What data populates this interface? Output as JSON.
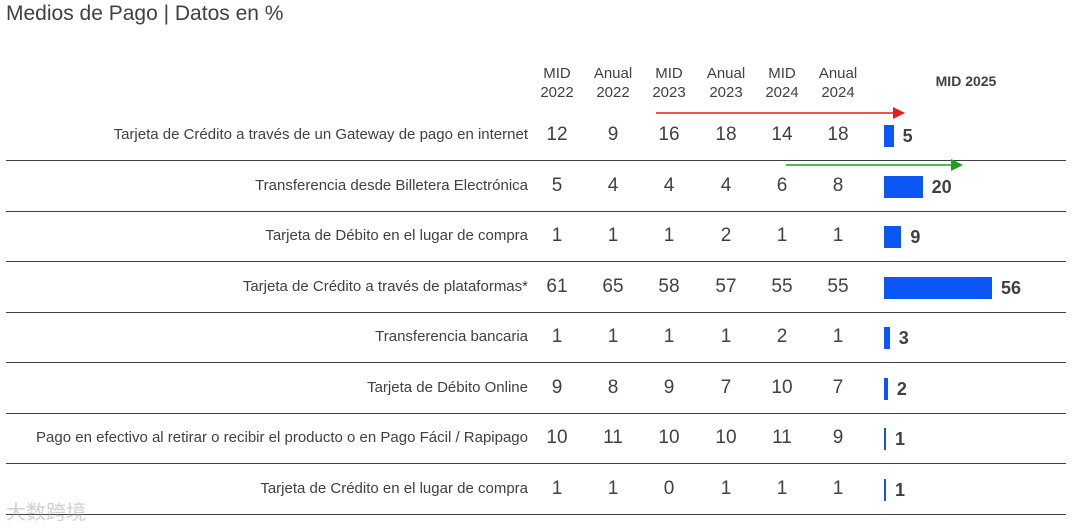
{
  "title": "Medios de Pago | Datos en %",
  "watermark": "大数跨境",
  "colors": {
    "bar": "#0b57f5",
    "arrow_up": "#e51c1c",
    "arrow_green": "#1aa31a"
  },
  "chart_data": {
    "type": "table",
    "title": "Medios de Pago | Datos en %",
    "columns": [
      {
        "line1": "MID",
        "line2": "2022"
      },
      {
        "line1": "Anual",
        "line2": "2022"
      },
      {
        "line1": "MID",
        "line2": "2023"
      },
      {
        "line1": "Anual",
        "line2": "2023"
      },
      {
        "line1": "MID",
        "line2": "2024"
      },
      {
        "line1": "Anual",
        "line2": "2024"
      }
    ],
    "bar_column": "MID 2025",
    "bar_max": 56,
    "rows": [
      {
        "label": "Tarjeta de Crédito a través de un Gateway de pago en internet",
        "values": [
          12,
          9,
          16,
          18,
          14,
          18
        ],
        "mid2025": 5
      },
      {
        "label": "Transferencia desde Billetera Electrónica",
        "values": [
          5,
          4,
          4,
          4,
          6,
          8
        ],
        "mid2025": 20
      },
      {
        "label": "Tarjeta de Débito en el lugar de compra",
        "values": [
          1,
          1,
          1,
          2,
          1,
          1
        ],
        "mid2025": 9
      },
      {
        "label": "Tarjeta de Crédito a través de plataformas*",
        "values": [
          61,
          65,
          58,
          57,
          55,
          55
        ],
        "mid2025": 56
      },
      {
        "label": "Transferencia bancaria",
        "values": [
          1,
          1,
          1,
          1,
          2,
          1
        ],
        "mid2025": 3
      },
      {
        "label": "Tarjeta de Débito Online",
        "values": [
          9,
          8,
          9,
          7,
          10,
          7
        ],
        "mid2025": 2
      },
      {
        "label": "Pago en efectivo al retirar o recibir el producto o en Pago Fácil / Rapipago",
        "values": [
          10,
          11,
          10,
          10,
          11,
          9
        ],
        "mid2025": 1
      },
      {
        "label": "Tarjeta de Crédito en el lugar de compra",
        "values": [
          1,
          1,
          0,
          1,
          1,
          1
        ],
        "mid2025": 1
      }
    ]
  }
}
